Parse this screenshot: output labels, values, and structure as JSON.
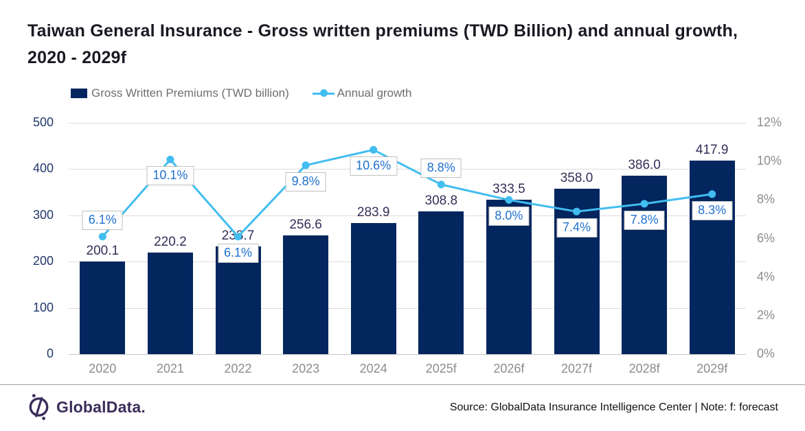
{
  "title": "Taiwan General Insurance - Gross written premiums (TWD Billion) and annual growth, 2020 - 2029f",
  "colors": {
    "bar": "#03265f",
    "line": "#41bdf0",
    "bar_value_label": "#352e58",
    "growth_label_text": "#2171ce",
    "growth_label_border": "#bfbfbf",
    "left_axis_text": "#21386b",
    "right_axis_text": "#8c8c8c",
    "x_axis_text": "#8c8c8c",
    "gridline": "#dcdcdc",
    "axis_baseline": "#c4c4c4",
    "title_text": "#191923",
    "legend_text": "#6e6e6e",
    "logo_purple": "#3b2d5b"
  },
  "chart_data": {
    "type": "bar",
    "title": "Taiwan General Insurance - Gross written premiums (TWD Billion) and annual growth, 2020 - 2029f",
    "categories": [
      "2020",
      "2021",
      "2022",
      "2023",
      "2024",
      "2025f",
      "2026f",
      "2027f",
      "2028f",
      "2029f"
    ],
    "series": [
      {
        "name": "Gross Written Premiums (TWD billion)",
        "type": "bar",
        "axis": "left",
        "values": [
          200.1,
          220.2,
          233.7,
          256.6,
          283.9,
          308.8,
          333.5,
          358.0,
          386.0,
          417.9
        ],
        "value_labels": [
          "200.1",
          "220.2",
          "233.7",
          "256.6",
          "283.9",
          "308.8",
          "333.5",
          "358.0",
          "386.0",
          "417.9"
        ]
      },
      {
        "name": "Annual growth",
        "type": "line",
        "axis": "right",
        "values": [
          6.1,
          10.1,
          6.1,
          9.8,
          10.6,
          8.8,
          8.0,
          7.4,
          7.8,
          8.3
        ],
        "value_labels": [
          "6.1%",
          "10.1%",
          "6.1%",
          "9.8%",
          "10.6%",
          "8.8%",
          "8.0%",
          "7.4%",
          "7.8%",
          "8.3%"
        ],
        "label_placement": [
          "above",
          "below",
          "below",
          "below",
          "below",
          "above",
          "below",
          "below",
          "below",
          "below"
        ]
      }
    ],
    "left_axis": {
      "min": 0,
      "max": 500,
      "step": 100,
      "ticks": [
        "0",
        "100",
        "200",
        "300",
        "400",
        "500"
      ]
    },
    "right_axis": {
      "min": 0,
      "max": 12,
      "step": 2,
      "ticks": [
        "0%",
        "2%",
        "4%",
        "6%",
        "8%",
        "10%",
        "12%"
      ]
    },
    "grid": true,
    "legend_position": "top"
  },
  "footer": {
    "logo_text": "GlobalData.",
    "source": "Source: GlobalData Insurance Intelligence Center | Note: f: forecast"
  }
}
